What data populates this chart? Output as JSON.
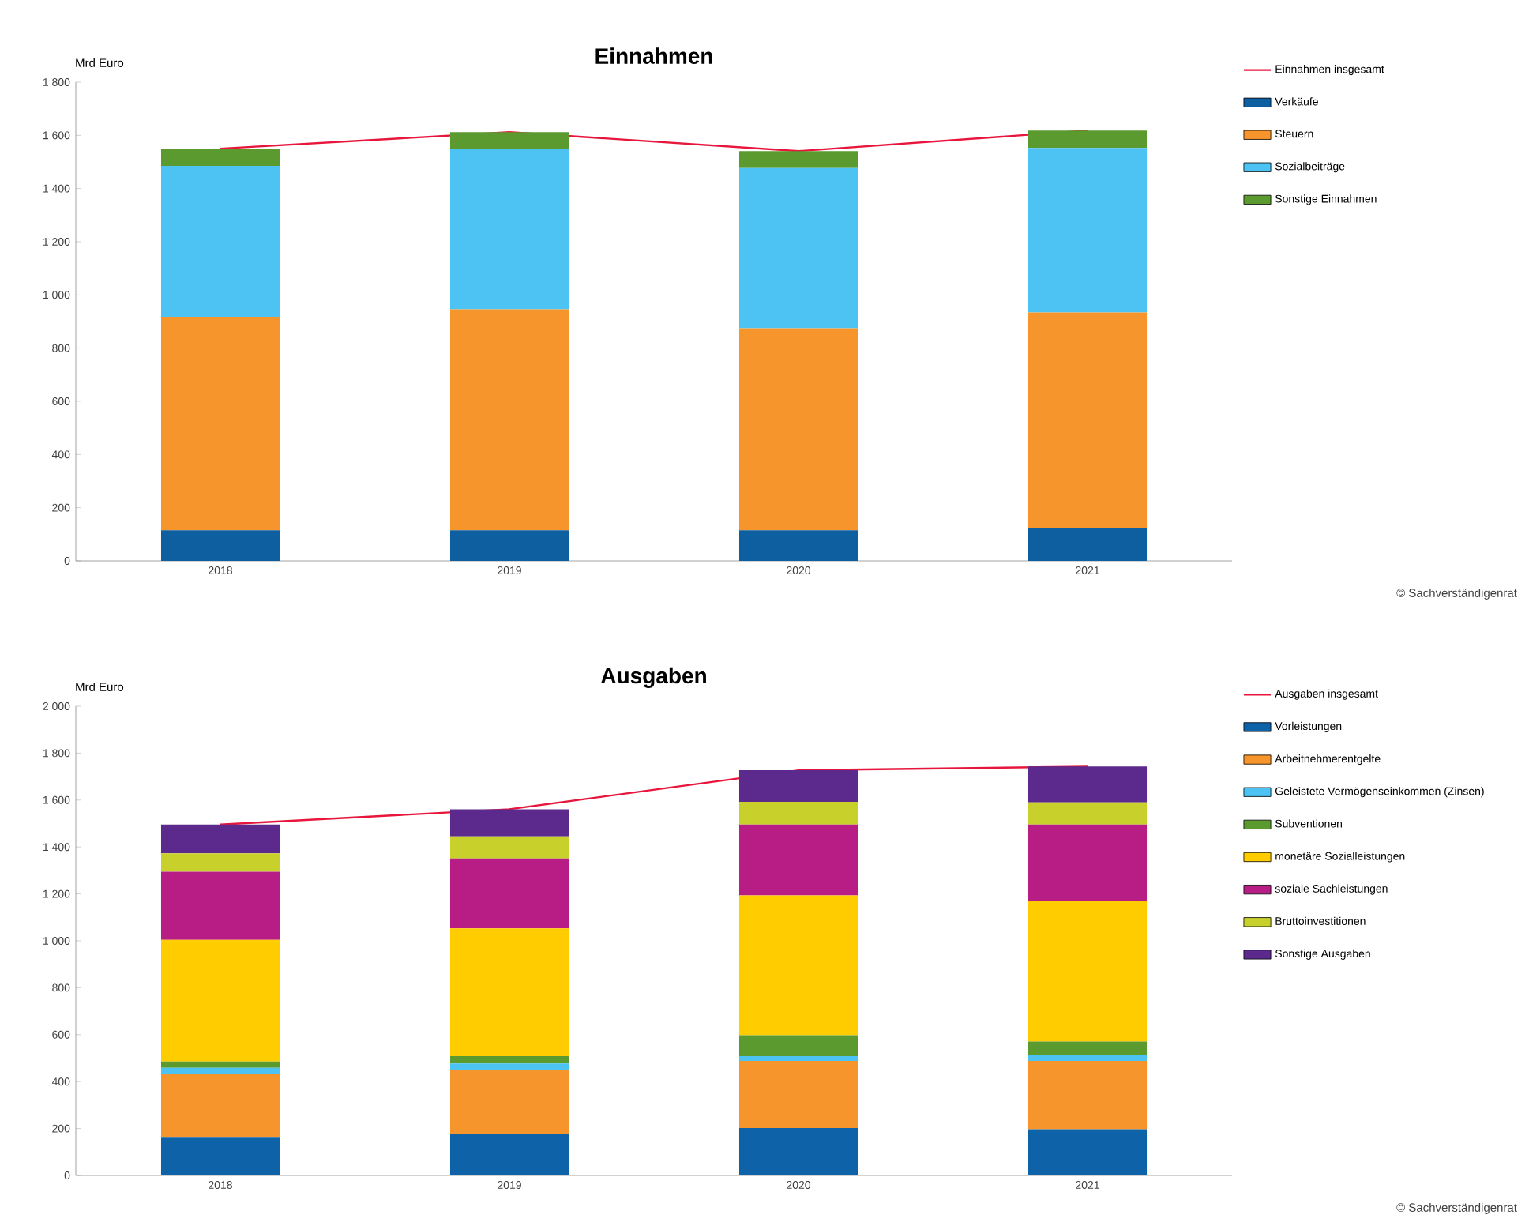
{
  "chart_data": [
    {
      "type": "bar",
      "title": "Einnahmen",
      "ylabel": "Mrd Euro",
      "stacked": true,
      "legend": "right",
      "categories": [
        "2018",
        "2019",
        "2020",
        "2021"
      ],
      "ylim": [
        0,
        1800
      ],
      "yticks": [
        0,
        200,
        400,
        600,
        800,
        {
          "value": 1000,
          "label": "1 000"
        },
        {
          "value": 1200,
          "label": "1 200"
        },
        {
          "value": 1400,
          "label": "1 400"
        },
        {
          "value": 1600,
          "label": "1 600"
        },
        {
          "value": 1800,
          "label": "1 800"
        }
      ],
      "series": [
        {
          "name": "Einnahmen insgesamt",
          "type": "line",
          "color": "#e8163c",
          "values": [
            1550,
            1612,
            1541,
            1618
          ]
        },
        {
          "name": "Verkäufe",
          "color": "#0e5fa0",
          "values": [
            115,
            115,
            115,
            125
          ]
        },
        {
          "name": "Steuern",
          "color": "#f7952d",
          "values": [
            803,
            831,
            760,
            809
          ]
        },
        {
          "name": "Sozialbeiträge",
          "color": "#4cc3f3",
          "values": [
            567,
            604,
            602,
            619
          ]
        },
        {
          "name": "Sonstige Einnahmen",
          "color": "#5b9a2f",
          "values": [
            65,
            62,
            64,
            65
          ]
        }
      ],
      "annotations": [
        "© Sachverständigenrat"
      ]
    },
    {
      "type": "bar",
      "title": "Ausgaben",
      "ylabel": "Mrd Euro",
      "stacked": true,
      "legend": "right",
      "categories": [
        "2018",
        "2019",
        "2020",
        "2021"
      ],
      "ylim": [
        0,
        2000
      ],
      "yticks": [
        0,
        200,
        400,
        600,
        800,
        {
          "value": 1000,
          "label": "1 000"
        },
        {
          "value": 1200,
          "label": "1 200"
        },
        {
          "value": 1400,
          "label": "1 400"
        },
        {
          "value": 1600,
          "label": "1 600"
        },
        {
          "value": 1800,
          "label": "1 800"
        },
        {
          "value": 2000,
          "label": "2 000"
        }
      ],
      "series": [
        {
          "name": "Ausgaben insgesamt",
          "type": "line",
          "color": "#e8163c",
          "values": [
            1496,
            1561,
            1727,
            1743
          ]
        },
        {
          "name": "Vorleistungen",
          "color": "#0e62a8",
          "values": [
            164,
            175,
            202,
            197
          ]
        },
        {
          "name": "Arbeitnehmerentgelte",
          "color": "#f7952d",
          "values": [
            268,
            275,
            286,
            291
          ]
        },
        {
          "name": "Geleistete Vermögenseinkommen (Zinsen)",
          "color": "#4cc3f3",
          "values": [
            27,
            27,
            20,
            27
          ]
        },
        {
          "name": "Subventionen",
          "color": "#5b9a2f",
          "values": [
            27,
            31,
            90,
            56
          ]
        },
        {
          "name": "monetäre Sozialleistungen",
          "color": "#ffcc00",
          "values": [
            518,
            545,
            596,
            601
          ]
        },
        {
          "name": "soziale Sachleistungen",
          "color": "#b81c85",
          "values": [
            291,
            298,
            302,
            324
          ]
        },
        {
          "name": "Bruttoinvestitionen",
          "color": "#c8d12c",
          "values": [
            78,
            94,
            97,
            94
          ]
        },
        {
          "name": "Sonstige Ausgaben",
          "color": "#5b2a8c",
          "values": [
            123,
            116,
            134,
            153
          ]
        }
      ],
      "annotations": [
        "© Sachverständigenrat"
      ]
    }
  ]
}
